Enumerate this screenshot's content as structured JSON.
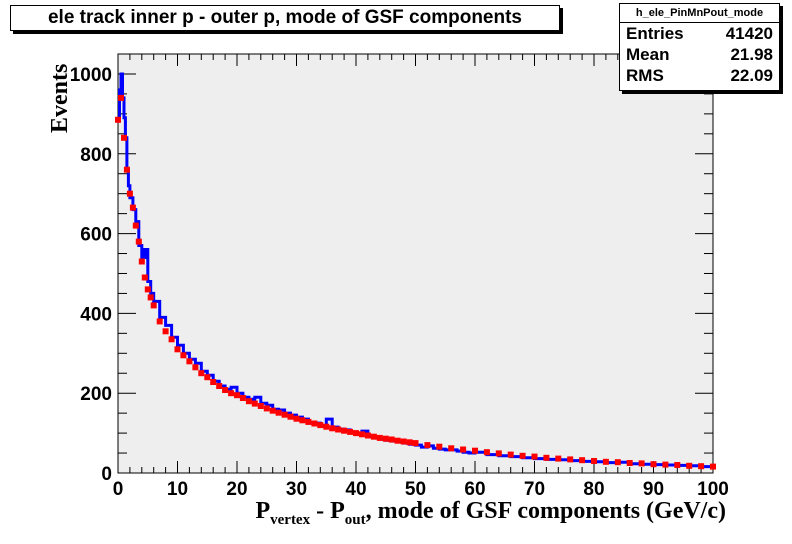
{
  "chart_data": {
    "type": "histogram",
    "title": "ele track inner p - outer p, mode of GSF components",
    "ylabel": "Events",
    "xlabel": {
      "p": "P",
      "vertex_sub": "vertex",
      "dash": " - P",
      "out_sub": "out",
      "rest": ", mode of GSF components (GeV/c)"
    },
    "xlim": [
      0,
      100
    ],
    "ylim": [
      0,
      1050
    ],
    "x_ticks": [
      "0",
      "10",
      "20",
      "30",
      "40",
      "50",
      "60",
      "70",
      "80",
      "90",
      "100"
    ],
    "y_ticks": [
      "0",
      "200",
      "400",
      "600",
      "800",
      "1000"
    ],
    "stats": {
      "name": "h_ele_PinMnPout_mode",
      "rows": [
        {
          "label": "Entries",
          "value": "41420"
        },
        {
          "label": "Mean",
          "value": "21.98"
        },
        {
          "label": "RMS",
          "value": "22.09"
        }
      ]
    },
    "series": [
      {
        "color": "#0000ff",
        "style": "histogram",
        "points": [
          [
            0,
            890
          ],
          [
            0.25,
            960
          ],
          [
            0.5,
            1000
          ],
          [
            0.75,
            940
          ],
          [
            1,
            890
          ],
          [
            1.25,
            840
          ],
          [
            1.5,
            760
          ],
          [
            1.75,
            720
          ],
          [
            2,
            690
          ],
          [
            2.5,
            660
          ],
          [
            3,
            630
          ],
          [
            3.5,
            570
          ],
          [
            4,
            540
          ],
          [
            4.5,
            560
          ],
          [
            5,
            480
          ],
          [
            5.5,
            450
          ],
          [
            6,
            430
          ],
          [
            7,
            390
          ],
          [
            8,
            370
          ],
          [
            9,
            340
          ],
          [
            10,
            320
          ],
          [
            11,
            300
          ],
          [
            12,
            285
          ],
          [
            13,
            275
          ],
          [
            14,
            255
          ],
          [
            15,
            245
          ],
          [
            16,
            230
          ],
          [
            17,
            218
          ],
          [
            18,
            210
          ],
          [
            19,
            215
          ],
          [
            20,
            200
          ],
          [
            21,
            190
          ],
          [
            22,
            185
          ],
          [
            23,
            190
          ],
          [
            24,
            175
          ],
          [
            25,
            170
          ],
          [
            26,
            160
          ],
          [
            27,
            158
          ],
          [
            28,
            150
          ],
          [
            29,
            145
          ],
          [
            30,
            140
          ],
          [
            31,
            135
          ],
          [
            32,
            125
          ],
          [
            33,
            125
          ],
          [
            34,
            118
          ],
          [
            35,
            135
          ],
          [
            36,
            115
          ],
          [
            37,
            110
          ],
          [
            38,
            108
          ],
          [
            39,
            102
          ],
          [
            40,
            98
          ],
          [
            41,
            105
          ],
          [
            42,
            92
          ],
          [
            43,
            88
          ],
          [
            44,
            85
          ],
          [
            45,
            82
          ],
          [
            46,
            80
          ],
          [
            47,
            78
          ],
          [
            48,
            75
          ],
          [
            49,
            72
          ],
          [
            50,
            70
          ],
          [
            51,
            65
          ],
          [
            52,
            68
          ],
          [
            53,
            62
          ],
          [
            54,
            60
          ],
          [
            55,
            58
          ],
          [
            56,
            58
          ],
          [
            57,
            55
          ],
          [
            58,
            52
          ],
          [
            59,
            50
          ],
          [
            60,
            52
          ],
          [
            62,
            46
          ],
          [
            64,
            43
          ],
          [
            66,
            41
          ],
          [
            68,
            38
          ],
          [
            70,
            36
          ],
          [
            72,
            34
          ],
          [
            74,
            33
          ],
          [
            76,
            31
          ],
          [
            78,
            29
          ],
          [
            80,
            28
          ],
          [
            82,
            26
          ],
          [
            84,
            27
          ],
          [
            86,
            23
          ],
          [
            88,
            22
          ],
          [
            90,
            21
          ],
          [
            92,
            20
          ],
          [
            94,
            19
          ],
          [
            96,
            18
          ],
          [
            98,
            16
          ],
          [
            100,
            15
          ]
        ]
      },
      {
        "color": "#ff0000",
        "style": "markers",
        "points": [
          [
            0,
            885
          ],
          [
            0.5,
            940
          ],
          [
            1,
            840
          ],
          [
            1.5,
            760
          ],
          [
            2,
            700
          ],
          [
            2.5,
            665
          ],
          [
            3,
            620
          ],
          [
            3.5,
            580
          ],
          [
            4,
            530
          ],
          [
            4.5,
            490
          ],
          [
            5,
            460
          ],
          [
            5.5,
            440
          ],
          [
            6,
            420
          ],
          [
            7,
            380
          ],
          [
            8,
            355
          ],
          [
            9,
            335
          ],
          [
            10,
            310
          ],
          [
            11,
            295
          ],
          [
            12,
            280
          ],
          [
            13,
            265
          ],
          [
            14,
            250
          ],
          [
            15,
            240
          ],
          [
            16,
            228
          ],
          [
            17,
            218
          ],
          [
            18,
            208
          ],
          [
            19,
            200
          ],
          [
            20,
            195
          ],
          [
            21,
            188
          ],
          [
            22,
            180
          ],
          [
            23,
            174
          ],
          [
            24,
            168
          ],
          [
            25,
            162
          ],
          [
            26,
            156
          ],
          [
            27,
            151
          ],
          [
            28,
            146
          ],
          [
            29,
            141
          ],
          [
            30,
            136
          ],
          [
            31,
            132
          ],
          [
            32,
            128
          ],
          [
            33,
            124
          ],
          [
            34,
            120
          ],
          [
            35,
            116
          ],
          [
            36,
            112
          ],
          [
            37,
            109
          ],
          [
            38,
            106
          ],
          [
            39,
            103
          ],
          [
            40,
            100
          ],
          [
            41,
            97
          ],
          [
            42,
            94
          ],
          [
            43,
            91
          ],
          [
            44,
            88
          ],
          [
            45,
            86
          ],
          [
            46,
            84
          ],
          [
            47,
            81
          ],
          [
            48,
            79
          ],
          [
            49,
            77
          ],
          [
            50,
            75
          ],
          [
            52,
            70
          ],
          [
            54,
            66
          ],
          [
            56,
            62
          ],
          [
            58,
            59
          ],
          [
            60,
            56
          ],
          [
            62,
            52
          ],
          [
            64,
            49
          ],
          [
            66,
            46
          ],
          [
            68,
            43
          ],
          [
            70,
            41
          ],
          [
            72,
            38
          ],
          [
            74,
            36
          ],
          [
            76,
            34
          ],
          [
            78,
            32
          ],
          [
            80,
            30
          ],
          [
            82,
            28
          ],
          [
            84,
            27
          ],
          [
            86,
            25
          ],
          [
            88,
            24
          ],
          [
            90,
            22
          ],
          [
            92,
            21
          ],
          [
            94,
            20
          ],
          [
            96,
            18
          ],
          [
            98,
            17
          ],
          [
            100,
            16
          ]
        ]
      }
    ]
  }
}
